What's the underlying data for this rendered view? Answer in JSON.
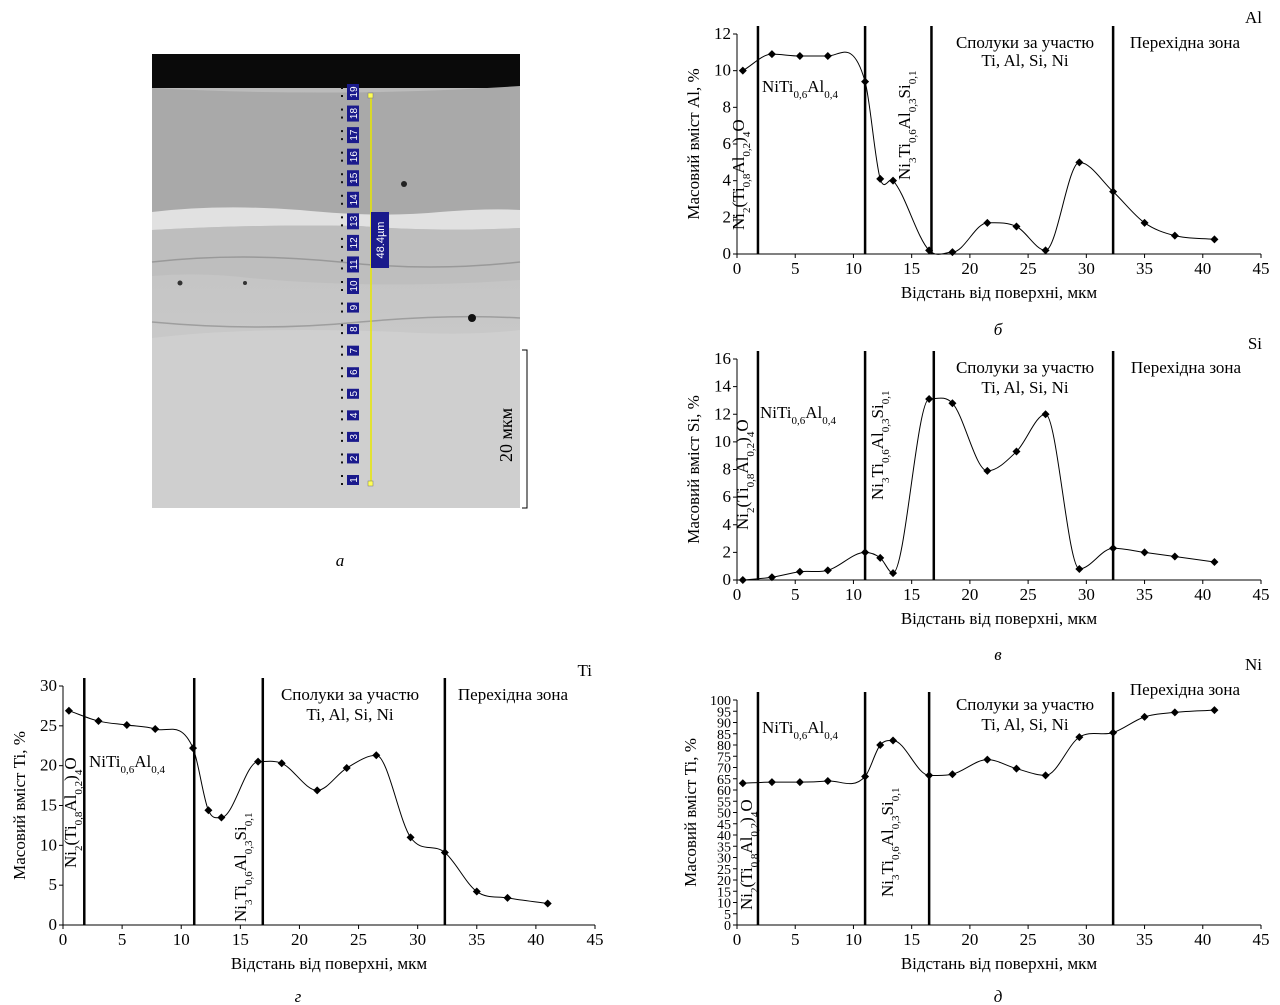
{
  "micrograph": {
    "caption": "а",
    "scale_label": "20 мкм",
    "line_length": "48.4µm",
    "point_labels": [
      "1",
      "2",
      "3",
      "4",
      "5",
      "6",
      "7",
      "8",
      "9",
      "10",
      "11",
      "12",
      "13",
      "14",
      "15",
      "16",
      "17",
      "18",
      "19"
    ]
  },
  "chart_data": [
    {
      "id": "al",
      "type": "line",
      "element": "Al",
      "caption": "б",
      "xlabel": "Відстань від поверхні, мкм",
      "ylabel": "Масовий вміст Al, %",
      "xlim": [
        0,
        45
      ],
      "ylim": [
        0,
        12
      ],
      "xticks": [
        0,
        5,
        10,
        15,
        20,
        25,
        30,
        35,
        40,
        45
      ],
      "yticks": [
        0,
        2,
        4,
        6,
        8,
        10,
        12
      ],
      "boundaries": [
        1.8,
        11,
        16.7,
        32.3
      ],
      "x": [
        0.5,
        3,
        5.4,
        7.8,
        11,
        12.3,
        13.4,
        16.5,
        18.5,
        21.5,
        24,
        26.5,
        29.4,
        32.3,
        35,
        37.6,
        41
      ],
      "y": [
        10,
        10.9,
        10.8,
        10.8,
        9.4,
        4.1,
        4.0,
        0.2,
        0.1,
        1.7,
        1.5,
        0.2,
        5.0,
        3.4,
        1.7,
        1.0,
        0.8
      ],
      "labels": {
        "compound1": {
          "base": "NiTi",
          "sub1": "0,6",
          "mid": "Al",
          "sub2": "0,4"
        },
        "compound2": {
          "text": "Ni3Ti0,6Al0,3Si0,1"
        },
        "compound3": {
          "text": "Ni2(Ti0,8Al0,2)4O"
        },
        "zone1": "Сполуки за участю",
        "zone2": "Ti, Al, Si, Ni",
        "zone3": "Перехідна зона"
      }
    },
    {
      "id": "si",
      "type": "line",
      "element": "Si",
      "caption": "в",
      "xlabel": "Відстань від поверхні, мкм",
      "ylabel": "Масовий вміст Si, %",
      "xlim": [
        0,
        45
      ],
      "ylim": [
        0,
        16
      ],
      "xticks": [
        0,
        5,
        10,
        15,
        20,
        25,
        30,
        35,
        40,
        45
      ],
      "yticks": [
        0,
        2,
        4,
        6,
        8,
        10,
        12,
        14,
        16
      ],
      "boundaries": [
        1.8,
        11,
        16.9,
        32.3
      ],
      "x": [
        0.5,
        3,
        5.4,
        7.8,
        11,
        12.3,
        13.4,
        16.5,
        18.5,
        21.5,
        24,
        26.5,
        29.4,
        32.3,
        35,
        37.6,
        41
      ],
      "y": [
        0,
        0.2,
        0.6,
        0.7,
        2.0,
        1.6,
        0.5,
        13.1,
        12.8,
        7.9,
        9.3,
        12.0,
        0.8,
        2.3,
        2.0,
        1.7,
        1.3
      ],
      "labels": {
        "compound1": {
          "base": "NiTi",
          "sub1": "0,6",
          "mid": "Al",
          "sub2": "0,4"
        },
        "compound2": {
          "text": "Ni3Ti0,6Al0,3Si0,1"
        },
        "compound3": {
          "text": "Ni2(Ti0,8Al0,2)4O"
        },
        "zone1": "Сполуки за участю",
        "zone2": "Ti, Al, Si, Ni",
        "zone3": "Перехідна зона"
      }
    },
    {
      "id": "ti",
      "type": "line",
      "element": "Ti",
      "caption": "г",
      "xlabel": "Відстань від поверхні, мкм",
      "ylabel": "Масовий вміст Ti, %",
      "xlim": [
        0,
        45
      ],
      "ylim": [
        0,
        30
      ],
      "xticks": [
        0,
        5,
        10,
        15,
        20,
        25,
        30,
        35,
        40,
        45
      ],
      "yticks": [
        0,
        5,
        10,
        15,
        20,
        25,
        30
      ],
      "boundaries": [
        1.8,
        11.1,
        16.9,
        32.3
      ],
      "x": [
        0.5,
        3,
        5.4,
        7.8,
        11,
        12.3,
        13.4,
        16.5,
        18.5,
        21.5,
        24,
        26.5,
        29.4,
        32.3,
        35,
        37.6,
        41
      ],
      "y": [
        26.9,
        25.6,
        25.1,
        24.6,
        22.2,
        14.4,
        13.5,
        20.5,
        20.3,
        16.9,
        19.7,
        21.3,
        11.0,
        9.1,
        4.2,
        3.4,
        2.7
      ],
      "labels": {
        "compound1": {
          "base": "NiTi",
          "sub1": "0,6",
          "mid": "Al",
          "sub2": "0,4"
        },
        "compound2": {
          "text": "Ni3Ti0,6Al0,3Si0,1"
        },
        "compound3": {
          "text": "Ni2(Ti0,8Al0,2)4O"
        },
        "zone1": "Сполуки за участю",
        "zone2": "Ti, Al, Si, Ni",
        "zone3": "Перехідна зона"
      }
    },
    {
      "id": "ni",
      "type": "line",
      "element": "Ni",
      "caption": "д",
      "xlabel": "Відстань від поверхні, мкм",
      "ylabel": "Масовий вміст Ti, %",
      "xlim": [
        0,
        45
      ],
      "ylim": [
        0,
        100
      ],
      "xticks": [
        0,
        5,
        10,
        15,
        20,
        25,
        30,
        35,
        40,
        45
      ],
      "yticks": [
        0,
        5,
        10,
        15,
        20,
        25,
        30,
        35,
        40,
        45,
        50,
        55,
        60,
        65,
        70,
        75,
        80,
        85,
        90,
        95,
        100
      ],
      "boundaries": [
        1.8,
        11,
        16.5,
        32.3
      ],
      "x": [
        0.5,
        3,
        5.4,
        7.8,
        11,
        12.3,
        13.4,
        16.5,
        18.5,
        21.5,
        24,
        26.5,
        29.4,
        32.3,
        35,
        37.6,
        41
      ],
      "y": [
        63,
        63.5,
        63.5,
        64,
        66,
        80,
        82,
        66.5,
        67,
        73.5,
        69.5,
        66.5,
        83.5,
        85.5,
        92.5,
        94.5,
        95.5
      ],
      "labels": {
        "compound1": {
          "base": "NiTi",
          "sub1": "0,6",
          "mid": "Al",
          "sub2": "0,4"
        },
        "compound2": {
          "text": "Ni3Ti0,6Al0,3Si0,1"
        },
        "compound3": {
          "text": "Ni2(Ti0,8Al0,2)4O"
        },
        "zone1": "Сполуки за участю",
        "zone2": "Ti, Al, Si, Ni",
        "zone3": "Перехідна зона"
      }
    }
  ]
}
